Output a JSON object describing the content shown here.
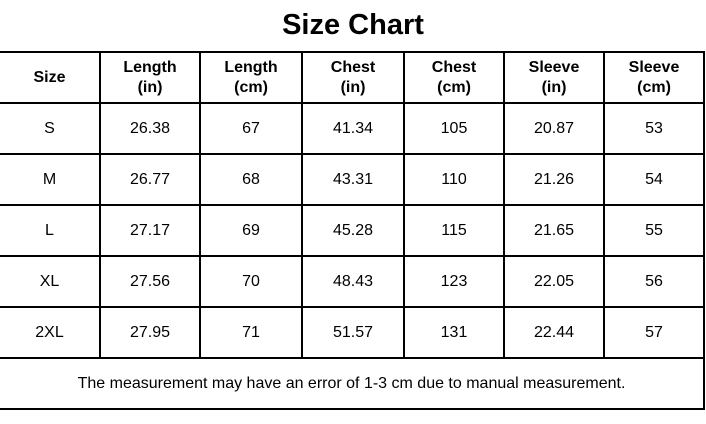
{
  "title": "Size Chart",
  "headers": [
    {
      "line1": "Size",
      "line2": ""
    },
    {
      "line1": "Length",
      "line2": "(in)"
    },
    {
      "line1": "Length",
      "line2": "(cm)"
    },
    {
      "line1": "Chest",
      "line2": "(in)"
    },
    {
      "line1": "Chest",
      "line2": "(cm)"
    },
    {
      "line1": "Sleeve",
      "line2": "(in)"
    },
    {
      "line1": "Sleeve",
      "line2": "(cm)"
    }
  ],
  "rows": [
    [
      "S",
      "26.38",
      "67",
      "41.34",
      "105",
      "20.87",
      "53"
    ],
    [
      "M",
      "26.77",
      "68",
      "43.31",
      "110",
      "21.26",
      "54"
    ],
    [
      "L",
      "27.17",
      "69",
      "45.28",
      "115",
      "21.65",
      "55"
    ],
    [
      "XL",
      "27.56",
      "70",
      "48.43",
      "123",
      "22.05",
      "56"
    ],
    [
      "2XL",
      "27.95",
      "71",
      "51.57",
      "131",
      "22.44",
      "57"
    ]
  ],
  "note": "The measurement may have an error of 1-3 cm due to manual measurement."
}
